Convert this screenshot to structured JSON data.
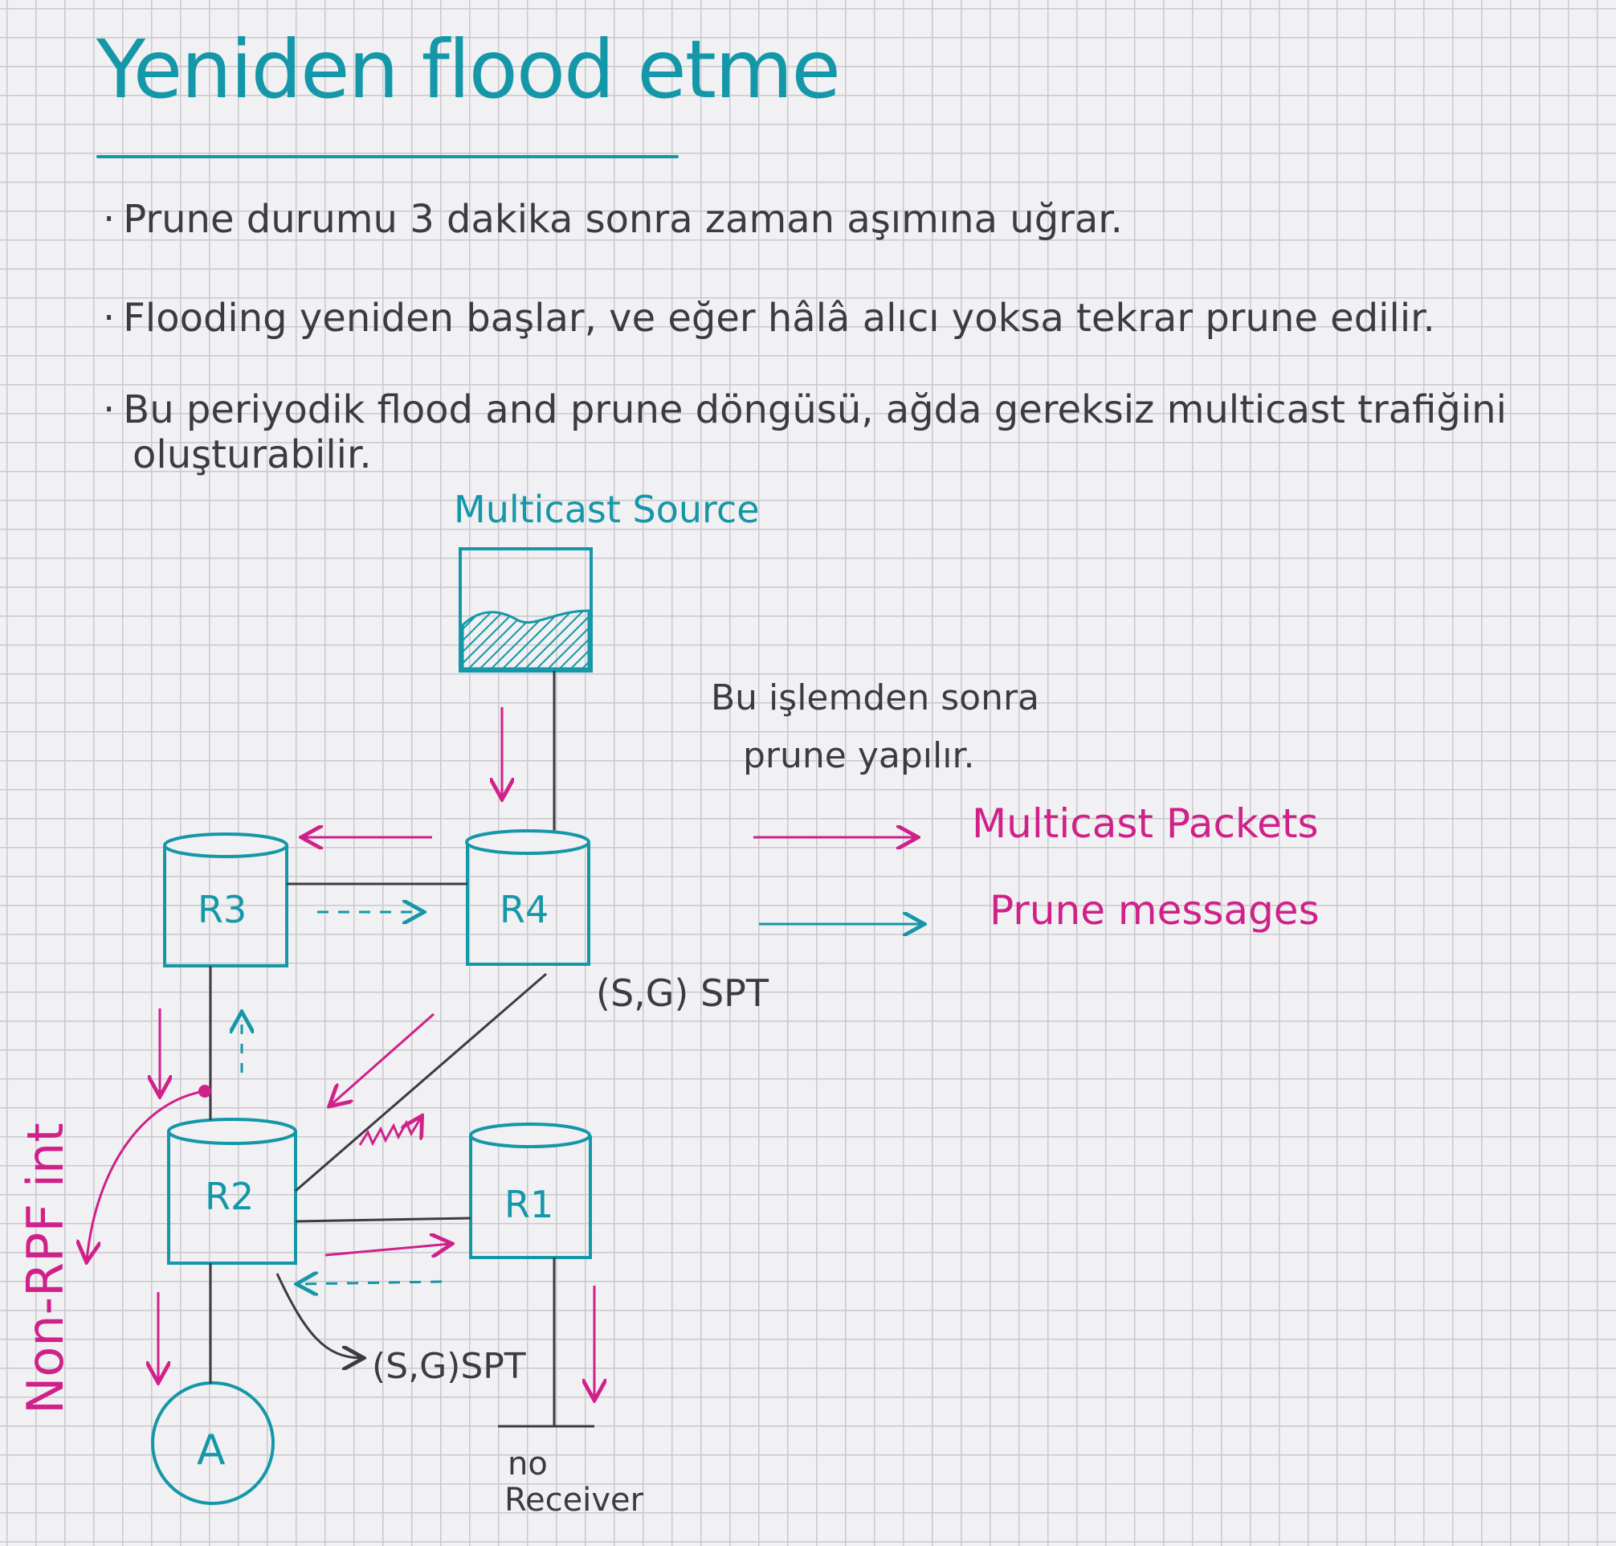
{
  "title": "Yeniden flood etme",
  "bullets": [
    "Prune durumu 3 dakika sonra zaman aşımına uğrar.",
    "Flooding yeniden başlar, ve eğer hâlâ alıcı yoksa tekrar prune edilir.",
    "Bu periyodik flood and prune döngüsü, ağda gereksiz multicast trafiğini",
    "oluşturabilir."
  ],
  "diagram": {
    "source_label": "Multicast Source",
    "note_line1": "Bu işlemden sonra",
    "note_line2": "prune yapılır.",
    "routers": {
      "r1": "R1",
      "r2": "R2",
      "r3": "R3",
      "r4": "R4"
    },
    "host_a": "A",
    "spt_label_top": "(S,G) SPT",
    "spt_label_bottom": "(S,G)SPT",
    "non_rpf_label": "Non-RPF int",
    "no_receiver_line1": "no",
    "no_receiver_line2": "Receiver",
    "legend": {
      "multicast": "Multicast Packets",
      "prune": "Prune messages"
    }
  },
  "colors": {
    "teal": "#1497a8",
    "magenta": "#d0208a",
    "ink": "#3d3b40",
    "paper": "#f1f0f2",
    "grid": "#c9c8cd"
  }
}
